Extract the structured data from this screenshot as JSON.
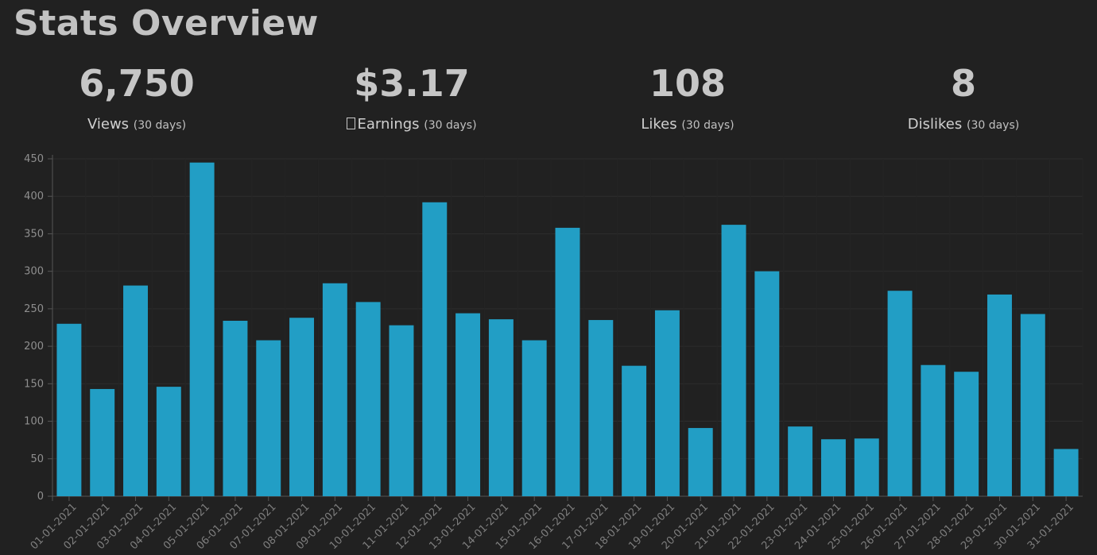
{
  "title": "Stats Overview",
  "stats": [
    {
      "value": "6,750",
      "label": "Views",
      "period": "(30 days)",
      "icon": ""
    },
    {
      "value": "$3.17",
      "label": "Earnings",
      "period": "(30 days)",
      "icon": "missing-glyph-icon"
    },
    {
      "value": "108",
      "label": "Likes",
      "period": "(30 days)",
      "icon": ""
    },
    {
      "value": "8",
      "label": "Dislikes",
      "period": "(30 days)",
      "icon": ""
    }
  ],
  "colors": {
    "bar": "#229ec5",
    "grid": "#2d2d2d",
    "axis": "#555555",
    "background": "#212121"
  },
  "chart_data": {
    "type": "bar",
    "categories": [
      "01-01-2021",
      "02-01-2021",
      "03-01-2021",
      "04-01-2021",
      "05-01-2021",
      "06-01-2021",
      "07-01-2021",
      "08-01-2021",
      "09-01-2021",
      "10-01-2021",
      "11-01-2021",
      "12-01-2021",
      "13-01-2021",
      "14-01-2021",
      "15-01-2021",
      "16-01-2021",
      "17-01-2021",
      "18-01-2021",
      "19-01-2021",
      "20-01-2021",
      "21-01-2021",
      "22-01-2021",
      "23-01-2021",
      "24-01-2021",
      "25-01-2021",
      "26-01-2021",
      "27-01-2021",
      "28-01-2021",
      "29-01-2021",
      "30-01-2021",
      "31-01-2021"
    ],
    "values": [
      230,
      143,
      281,
      146,
      445,
      234,
      208,
      238,
      284,
      259,
      228,
      392,
      244,
      236,
      208,
      358,
      235,
      174,
      248,
      91,
      362,
      300,
      93,
      76,
      77,
      274,
      175,
      166,
      269,
      243,
      63
    ],
    "ylim": [
      0,
      450
    ],
    "yticks": [
      0,
      50,
      100,
      150,
      200,
      250,
      300,
      350,
      400,
      450
    ],
    "grid": true,
    "legend": "none",
    "title": "",
    "xlabel": "",
    "ylabel": ""
  }
}
